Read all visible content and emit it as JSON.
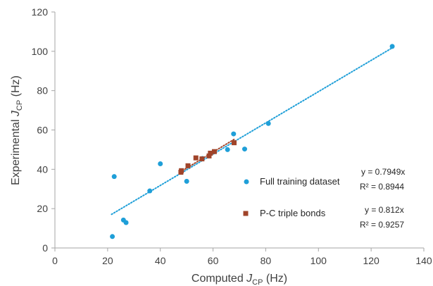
{
  "chart_data": {
    "type": "scatter",
    "xlabel": {
      "main": "Computed ",
      "italic": "J",
      "sub": "CP",
      "unit": " (Hz)"
    },
    "ylabel": {
      "main": "Experimental ",
      "italic": "J",
      "sub": "CP",
      "unit": " (Hz)"
    },
    "xlim": [
      0,
      140
    ],
    "ylim": [
      0,
      120
    ],
    "xticks": [
      0,
      20,
      40,
      60,
      80,
      100,
      120,
      140
    ],
    "yticks": [
      0,
      20,
      40,
      60,
      80,
      100,
      120
    ],
    "grid": false,
    "legend_position": "right",
    "series": [
      {
        "name": "Full training dataset",
        "marker": "circle",
        "color": "#1f9fd8",
        "equation": "y = 0.7949x",
        "r2": "R² = 0.8944",
        "slope": 0.7949,
        "trend_x_range": [
          21.5,
          128
        ],
        "points": [
          [
            21.8,
            5.8
          ],
          [
            22.5,
            36.3
          ],
          [
            26.0,
            14.2
          ],
          [
            27.0,
            12.9
          ],
          [
            36.0,
            29.0
          ],
          [
            40.0,
            42.8
          ],
          [
            50.0,
            33.9
          ],
          [
            56.0,
            45.5
          ],
          [
            65.5,
            50.0
          ],
          [
            67.8,
            58.0
          ],
          [
            72.0,
            50.3
          ],
          [
            81.0,
            63.3
          ],
          [
            128.0,
            102.5
          ]
        ]
      },
      {
        "name": "P-C triple bonds",
        "marker": "square",
        "color": "#a0442a",
        "equation": "y = 0.812x",
        "r2": "R² = 0.9257",
        "slope": 0.812,
        "trend_x_range": [
          47.5,
          68
        ],
        "points": [
          [
            47.8,
            38.5
          ],
          [
            48.0,
            39.3
          ],
          [
            50.5,
            41.8
          ],
          [
            53.5,
            45.8
          ],
          [
            55.8,
            45.3
          ],
          [
            58.5,
            46.8
          ],
          [
            59.0,
            48.2
          ],
          [
            60.5,
            49.0
          ],
          [
            68.0,
            53.5
          ]
        ]
      }
    ]
  }
}
